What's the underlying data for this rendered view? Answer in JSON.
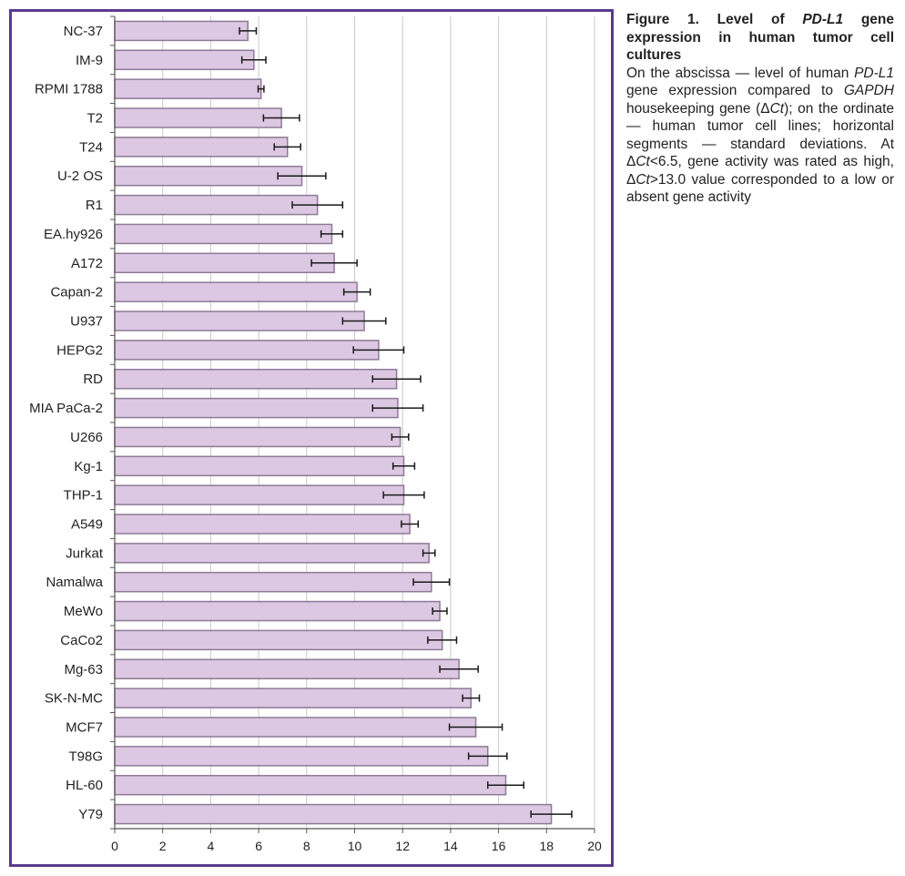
{
  "colors": {
    "frame": "#5b3a8c",
    "bar_fill": "#dcc8e2",
    "bar_stroke": "#8e7a96",
    "grid": "#c8c8c8",
    "axis": "#555555",
    "error_bar": "#1a1a1a"
  },
  "caption": {
    "title_prefix": "Figure 1. Level of ",
    "title_gene": "PD-L1",
    "title_suffix": " gene expression in human tumor cell cultures",
    "p1": "On the abscissa — level of human ",
    "p1_gene": "PD-L1",
    "p2": " gene expression compared to ",
    "p2_gene": "GAPDH",
    "p3": " housekeeping gene (Δ",
    "p3_ct": "Ct",
    "p4": "); on the ordinate — human tumor cell lines; horizontal segments — standard deviations. At Δ",
    "p4_ct": "Ct",
    "p5": "<6.5, gene activity was rated as high, Δ",
    "p5_ct": "Ct",
    "p6": ">13.0 value corresponded to a low or absent gene activity"
  },
  "chart_data": {
    "type": "bar",
    "orientation": "horizontal",
    "title": "",
    "xlabel": "",
    "ylabel": "",
    "xlim": [
      0,
      20
    ],
    "xticks": [
      0,
      2,
      4,
      6,
      8,
      10,
      12,
      14,
      16,
      18,
      20
    ],
    "grid": "vertical",
    "categories": [
      "NC-37",
      "IM-9",
      "RPMI 1788",
      "T2",
      "T24",
      "U-2 OS",
      "R1",
      "EA.hy926",
      "A172",
      "Capan-2",
      "U937",
      "HEPG2",
      "RD",
      "MIA PaCa-2",
      "U266",
      "Kg-1",
      "THP-1",
      "A549",
      "Jurkat",
      "Namalwa",
      "MeWo",
      "CaCo2",
      "Mg-63",
      "SK-N-MC",
      "MCF7",
      "T98G",
      "HL-60",
      "Y79"
    ],
    "values": [
      5.55,
      5.8,
      6.1,
      6.95,
      7.2,
      7.8,
      8.45,
      9.05,
      9.15,
      10.1,
      10.4,
      11.0,
      11.75,
      11.8,
      11.9,
      12.05,
      12.05,
      12.3,
      13.1,
      13.2,
      13.55,
      13.65,
      14.35,
      14.85,
      15.05,
      15.55,
      16.3,
      18.2
    ],
    "errors": [
      0.35,
      0.5,
      0.12,
      0.75,
      0.55,
      1.0,
      1.05,
      0.45,
      0.95,
      0.55,
      0.9,
      1.05,
      1.0,
      1.05,
      0.35,
      0.45,
      0.85,
      0.35,
      0.25,
      0.75,
      0.3,
      0.6,
      0.8,
      0.35,
      1.1,
      0.8,
      0.75,
      0.85
    ]
  }
}
